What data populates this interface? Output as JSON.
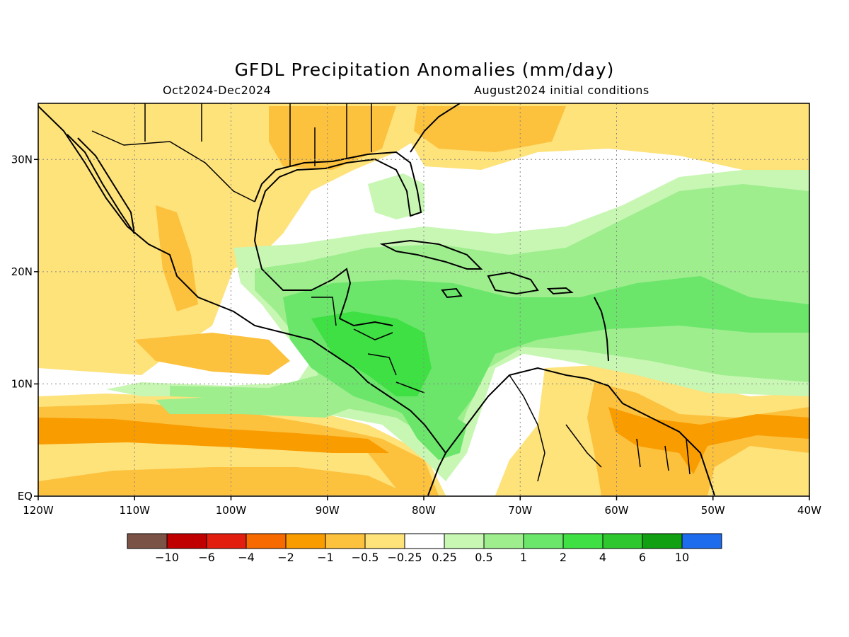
{
  "title": "GFDL Precipitation Anomalies (mm/day)",
  "season": "Oct2024-Dec2024",
  "init": "August2024 initial conditions",
  "map": {
    "lon_range": [
      -120,
      -40
    ],
    "lat_range": [
      0,
      35
    ],
    "lon_ticks": [
      {
        "lon": -120,
        "label": "120W"
      },
      {
        "lon": -110,
        "label": "110W"
      },
      {
        "lon": -100,
        "label": "100W"
      },
      {
        "lon": -90,
        "label": "90W"
      },
      {
        "lon": -80,
        "label": "80W"
      },
      {
        "lon": -70,
        "label": "70W"
      },
      {
        "lon": -60,
        "label": "60W"
      },
      {
        "lon": -50,
        "label": "50W"
      },
      {
        "lon": -40,
        "label": "40W"
      }
    ],
    "lat_ticks": [
      {
        "lat": 0,
        "label": "EQ"
      },
      {
        "lat": 10,
        "label": "10N"
      },
      {
        "lat": 20,
        "label": "20N"
      },
      {
        "lat": 30,
        "label": "30N"
      }
    ],
    "grid": "dotted"
  },
  "colorbar": {
    "colors": [
      "#7b5246",
      "#c00000",
      "#e21e0f",
      "#f66a00",
      "#f99c00",
      "#fcc13d",
      "#fee27a",
      "#ffffff",
      "#c8f7b4",
      "#9eee8e",
      "#6be66b",
      "#3fe044",
      "#2fc72e",
      "#10a012",
      "#1e6cee"
    ],
    "labels": [
      "-10",
      "-6",
      "-4",
      "-2",
      "-1",
      "-0.5",
      "-0.25",
      "0.25",
      "0.5",
      "1",
      "2",
      "4",
      "6",
      "10"
    ]
  },
  "palette": {
    "dry_weak": "#fee27a",
    "dry_moderate": "#fcc13d",
    "dry_strong": "#f99c00",
    "wet_weak": "#c8f7b4",
    "wet_moderate": "#9eee8e",
    "wet_strong": "#6be66b",
    "wet_very_strong": "#3fe044"
  }
}
